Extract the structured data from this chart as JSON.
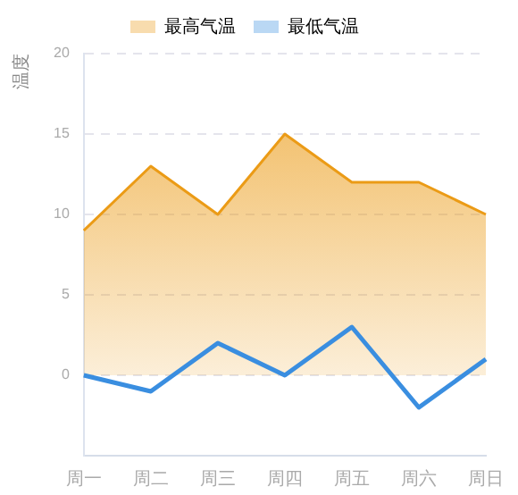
{
  "chart_data": {
    "type": "line",
    "ylabel": "温度",
    "categories": [
      "周一",
      "周二",
      "周三",
      "周四",
      "周五",
      "周六",
      "周日"
    ],
    "series": [
      {
        "name": "最高气温",
        "type": "area",
        "color": "#eb9b16",
        "values": [
          9,
          13,
          10,
          15,
          12,
          12,
          10
        ]
      },
      {
        "name": "最低气温",
        "type": "line",
        "color": "#3a8ee0",
        "values": [
          0,
          -1,
          2,
          0,
          3,
          -2,
          1
        ]
      }
    ],
    "ylim": [
      -5,
      20
    ],
    "yticks": [
      0,
      5,
      10,
      15,
      20
    ],
    "grid": "y",
    "legend": "top",
    "marker": "none",
    "line_style": "solid"
  }
}
